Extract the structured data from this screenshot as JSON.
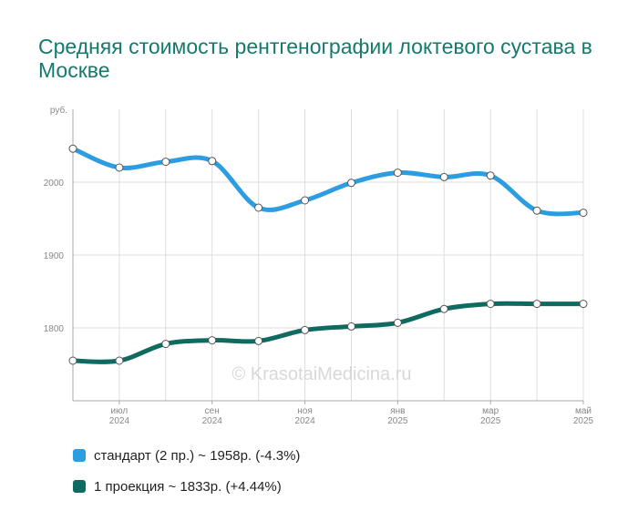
{
  "title": "Средняя стоимость рентгенографии локтевого сустава в Москве",
  "watermark": "© KrasotaiMedicina.ru",
  "chart_data": {
    "type": "line",
    "y_unit_label": "руб.",
    "ylim": [
      1700,
      2100
    ],
    "yticks": [
      1800,
      1900,
      2000
    ],
    "x_tick_labels": [
      {
        "month": "июл",
        "year": "2024"
      },
      {
        "month": "сен",
        "year": "2024"
      },
      {
        "month": "ноя",
        "year": "2024"
      },
      {
        "month": "янв",
        "year": "2025"
      },
      {
        "month": "мар",
        "year": "2025"
      },
      {
        "month": "май",
        "year": "2025"
      }
    ],
    "grid": true,
    "legend_placement": "bottom-left",
    "series": [
      {
        "name": "стандарт (2 пр.) ~ 1958р. (-4.3%)",
        "color": "#2b9de0",
        "values": [
          2046,
          2020,
          2028,
          2029,
          1965,
          1975,
          1999,
          2013,
          2007,
          2009,
          1961,
          1958
        ]
      },
      {
        "name": "1 проекция ~ 1833р. (+4.44%)",
        "color": "#0f6b60",
        "values": [
          1755,
          1755,
          1778,
          1783,
          1782,
          1797,
          1802,
          1807,
          1826,
          1833,
          1833,
          1833
        ]
      }
    ]
  }
}
